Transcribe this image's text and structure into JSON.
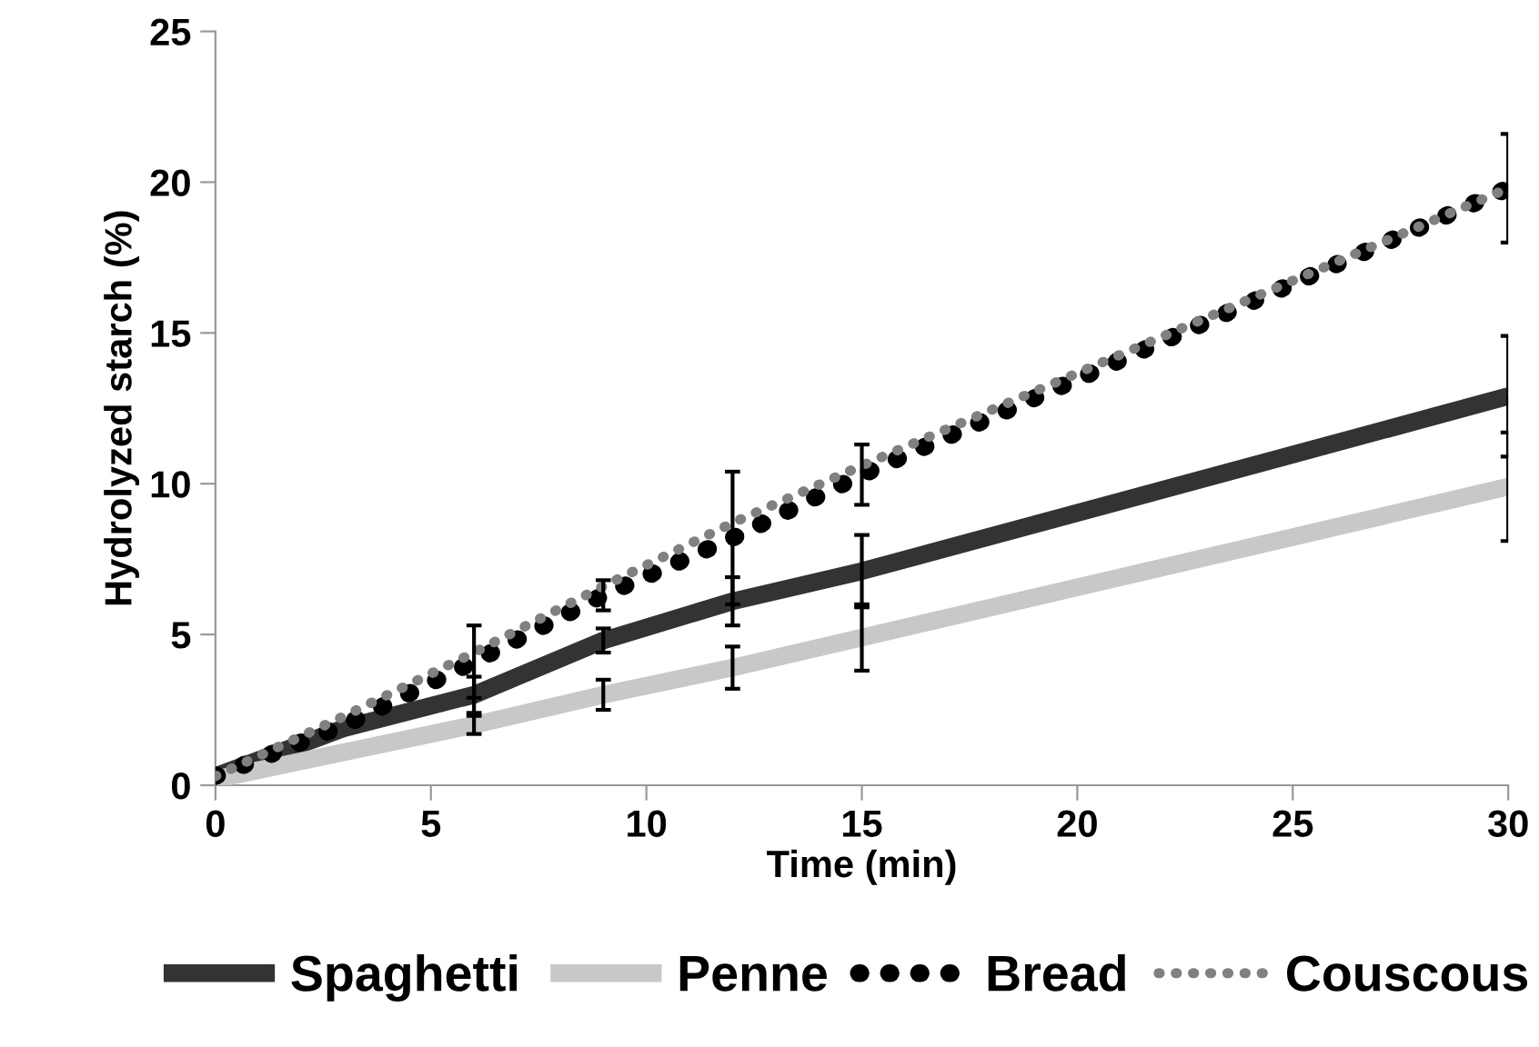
{
  "chart_data": {
    "type": "line",
    "xlabel": "Time (min)",
    "ylabel": "Hydrolyzed starch (%)",
    "x": [
      0,
      3,
      6,
      9,
      12,
      15,
      30
    ],
    "xlim": [
      0,
      30
    ],
    "xticks": [
      0,
      5,
      10,
      15,
      20,
      25,
      30
    ],
    "ylim": [
      0,
      25
    ],
    "yticks": [
      0,
      5,
      10,
      15,
      20,
      25
    ],
    "grid": false,
    "legend": "bottom",
    "marker": "none",
    "series": [
      {
        "name": "Spaghetti",
        "color": "#333333",
        "line_style": "solid",
        "values": [
          0.3,
          1.9,
          3.0,
          4.8,
          6.1,
          7.1,
          12.9
        ],
        "errors": [
          null,
          null,
          0.6,
          0.4,
          0.8,
          1.2,
          2.0
        ]
      },
      {
        "name": "Penne",
        "color": "#c8c8c8",
        "line_style": "solid",
        "values": [
          0.2,
          1.1,
          2.0,
          3.0,
          3.9,
          4.9,
          9.9
        ],
        "errors": [
          null,
          null,
          0.3,
          0.5,
          0.7,
          1.1,
          1.8
        ]
      },
      {
        "name": "Bread",
        "color": "#000000",
        "line_style": "dotted",
        "values": [
          0.3,
          2.0,
          4.1,
          6.3,
          8.2,
          10.3,
          19.8
        ],
        "errors": [
          null,
          null,
          1.2,
          0.5,
          2.2,
          1.0,
          1.8
        ]
      },
      {
        "name": "Couscous",
        "color": "#808080",
        "line_style": "dotted",
        "values": [
          0.3,
          2.3,
          4.4,
          6.6,
          8.7,
          10.6,
          19.8
        ]
      }
    ]
  }
}
